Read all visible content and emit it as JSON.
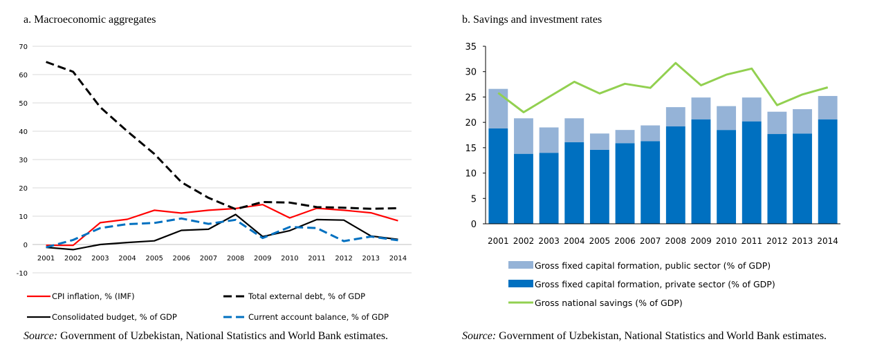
{
  "panel_a": {
    "title": "a. Macroeconomic aggregates",
    "source_label": "Source:",
    "source_text": "Government of Uzbekistan, National Statistics and World Bank estimates."
  },
  "panel_b": {
    "title": "b. Savings and investment rates",
    "source_label": "Source:",
    "source_text": "Government of Uzbekistan, National Statistics and World Bank estimates."
  },
  "chart_data": [
    {
      "type": "line",
      "title": "a. Macroeconomic aggregates",
      "x": [
        "2001",
        "2002",
        "2003",
        "2004",
        "2005",
        "2006",
        "2007",
        "2008",
        "2009",
        "2010",
        "2011",
        "2012",
        "2013",
        "2014"
      ],
      "ylim": [
        -10,
        70
      ],
      "yticks": [
        -10,
        0,
        10,
        20,
        30,
        40,
        50,
        60,
        70
      ],
      "grid": true,
      "legend_position": "bottom",
      "series": [
        {
          "name": "CPI inflation, % (IMF)",
          "color": "#ff0000",
          "style": "solid",
          "values": [
            -0.3,
            -0.3,
            7.7,
            8.9,
            12.1,
            11.1,
            12.1,
            12.7,
            14.1,
            9.4,
            12.8,
            12.1,
            11.2,
            8.4
          ]
        },
        {
          "name": "Total external debt, % of GDP",
          "color": "#000000",
          "style": "dashed",
          "values": [
            64.5,
            61.0,
            48.5,
            40.0,
            32.0,
            22.0,
            16.5,
            12.5,
            15.0,
            14.8,
            13.2,
            13.0,
            12.6,
            12.8
          ]
        },
        {
          "name": "Consolidated budget, % of GDP",
          "color": "#000000",
          "style": "solid",
          "values": [
            -1.0,
            -1.8,
            0.0,
            0.7,
            1.3,
            5.0,
            5.4,
            10.6,
            2.8,
            4.9,
            8.8,
            8.6,
            3.0,
            1.8
          ]
        },
        {
          "name": "Current account balance, % of GDP",
          "color": "#0070c0",
          "style": "dashed",
          "values": [
            -1.0,
            1.6,
            5.8,
            7.2,
            7.6,
            9.2,
            7.3,
            8.7,
            2.3,
            6.2,
            5.8,
            1.2,
            2.8,
            1.5
          ]
        }
      ]
    },
    {
      "type": "bar",
      "title": "b. Savings and investment rates",
      "categories": [
        "2001",
        "2002",
        "2003",
        "2004",
        "2005",
        "2006",
        "2007",
        "2008",
        "2009",
        "2010",
        "2011",
        "2012",
        "2013",
        "2014"
      ],
      "ylim": [
        0,
        35
      ],
      "yticks": [
        0,
        5,
        10,
        15,
        20,
        25,
        30,
        35
      ],
      "grid": false,
      "legend_position": "bottom",
      "stacked": true,
      "series": [
        {
          "name": "Gross fixed capital formation, public sector (% of GDP)",
          "color": "#95b3d7",
          "kind": "bar",
          "values": [
            7.8,
            7.0,
            5.0,
            4.7,
            3.2,
            2.6,
            3.1,
            3.8,
            4.3,
            4.7,
            4.7,
            4.4,
            4.8,
            4.6
          ]
        },
        {
          "name": "Gross fixed capital formation, private sector (% of GDP)",
          "color": "#0070c0",
          "kind": "bar",
          "values": [
            18.8,
            13.8,
            14.0,
            16.1,
            14.6,
            15.9,
            16.3,
            19.2,
            20.6,
            18.5,
            20.2,
            17.7,
            17.8,
            20.6
          ]
        },
        {
          "name": "Gross national savings (% of GDP)",
          "color": "#92d050",
          "kind": "line",
          "values": [
            25.8,
            22.0,
            25.0,
            28.0,
            25.7,
            27.6,
            26.8,
            31.7,
            27.3,
            29.4,
            30.6,
            23.4,
            25.5,
            26.9
          ]
        }
      ]
    }
  ]
}
